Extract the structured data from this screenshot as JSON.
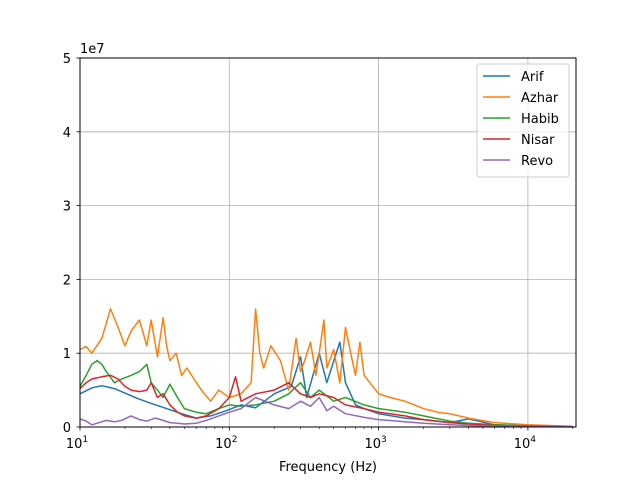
{
  "chart_data": {
    "type": "line",
    "title": "",
    "xlabel": "Frequency (Hz)",
    "ylabel": "",
    "x_scale": "log",
    "xlim": [
      10,
      21000
    ],
    "ylim": [
      0,
      50000000
    ],
    "y_offset_label": "1e7",
    "x_ticks": [
      {
        "value": 10,
        "base": "10",
        "exp": "1"
      },
      {
        "value": 100,
        "base": "10",
        "exp": "2"
      },
      {
        "value": 1000,
        "base": "10",
        "exp": "3"
      },
      {
        "value": 10000,
        "base": "10",
        "exp": "4"
      }
    ],
    "y_ticks": [
      {
        "value": 0,
        "label": "0"
      },
      {
        "value": 10000000,
        "label": "1"
      },
      {
        "value": 20000000,
        "label": "2"
      },
      {
        "value": 30000000,
        "label": "3"
      },
      {
        "value": 40000000,
        "label": "4"
      },
      {
        "value": 50000000,
        "label": "5"
      }
    ],
    "grid": true,
    "legend_position": "top-right",
    "series": [
      {
        "name": "Arif",
        "color": "#1f77b4",
        "x": [
          10,
          12,
          14,
          17,
          20,
          24,
          30,
          38,
          48,
          60,
          75,
          95,
          120,
          150,
          200,
          260,
          300,
          330,
          400,
          450,
          550,
          600,
          700,
          800,
          1000,
          1500,
          2000,
          3000,
          4000,
          6000,
          10000,
          20000
        ],
        "y": [
          4500000,
          5300000,
          5600000,
          5200000,
          4600000,
          3900000,
          3200000,
          2500000,
          1800000,
          1200000,
          1500000,
          2200000,
          3000000,
          2600000,
          4500000,
          5500000,
          9500000,
          4000000,
          10000000,
          6000000,
          11500000,
          6000000,
          3000000,
          2500000,
          1800000,
          1200000,
          1000000,
          600000,
          1100000,
          300000,
          150000,
          50000
        ]
      },
      {
        "name": "Azhar",
        "color": "#ff7f0e",
        "x": [
          10,
          11,
          12,
          14,
          16,
          18,
          20,
          22,
          25,
          28,
          30,
          33,
          36,
          38,
          40,
          44,
          48,
          52,
          58,
          65,
          75,
          85,
          100,
          120,
          140,
          150,
          160,
          170,
          190,
          220,
          250,
          280,
          300,
          320,
          350,
          380,
          400,
          430,
          450,
          500,
          550,
          600,
          650,
          700,
          750,
          800,
          1000,
          1200,
          1500,
          2000,
          2500,
          3000,
          4000,
          6000,
          10000,
          20000
        ],
        "y": [
          10500000,
          10900000,
          10000000,
          12000000,
          16000000,
          13500000,
          11000000,
          13000000,
          14500000,
          11000000,
          14500000,
          9500000,
          14800000,
          11000000,
          9000000,
          10000000,
          7000000,
          8000000,
          6500000,
          5000000,
          3500000,
          5000000,
          4000000,
          4500000,
          6000000,
          16000000,
          10000000,
          8000000,
          11000000,
          9000000,
          5000000,
          12000000,
          7500000,
          9000000,
          11500000,
          7000000,
          10000000,
          14500000,
          8000000,
          10500000,
          6000000,
          13500000,
          10000000,
          7000000,
          11500000,
          7000000,
          4500000,
          4000000,
          3500000,
          2500000,
          2000000,
          1800000,
          1200000,
          600000,
          300000,
          80000
        ]
      },
      {
        "name": "Habib",
        "color": "#2ca02c",
        "x": [
          10,
          11,
          12,
          13,
          14,
          15,
          17,
          19,
          22,
          25,
          28,
          30,
          33,
          36,
          40,
          45,
          50,
          60,
          70,
          85,
          100,
          120,
          150,
          200,
          250,
          300,
          350,
          400,
          500,
          600,
          800,
          1000,
          1500,
          2000,
          3000,
          4000,
          6000,
          10000,
          20000
        ],
        "y": [
          5500000,
          7000000,
          8500000,
          9000000,
          8500000,
          7500000,
          6000000,
          6500000,
          7000000,
          7500000,
          8500000,
          6000000,
          5000000,
          4000000,
          5800000,
          4000000,
          2500000,
          2000000,
          1800000,
          2500000,
          3000000,
          2800000,
          3000000,
          3500000,
          4500000,
          6000000,
          4000000,
          5000000,
          3500000,
          4000000,
          3000000,
          2500000,
          2000000,
          1500000,
          800000,
          500000,
          300000,
          150000,
          50000
        ]
      },
      {
        "name": "Nisar",
        "color": "#d62728",
        "x": [
          10,
          11,
          12,
          14,
          16,
          18,
          20,
          22,
          25,
          28,
          30,
          33,
          36,
          40,
          45,
          50,
          60,
          70,
          85,
          100,
          110,
          120,
          150,
          200,
          250,
          300,
          350,
          400,
          500,
          600,
          800,
          1000,
          1500,
          2000,
          3000,
          4000,
          6000,
          10000,
          20000
        ],
        "y": [
          5200000,
          6000000,
          6500000,
          6800000,
          7000000,
          6500000,
          5500000,
          5000000,
          4800000,
          5000000,
          6000000,
          4000000,
          4500000,
          3000000,
          2000000,
          1500000,
          1200000,
          1500000,
          2500000,
          4000000,
          6800000,
          3500000,
          4500000,
          5000000,
          6000000,
          4500000,
          4000000,
          4500000,
          4000000,
          3000000,
          2500000,
          2000000,
          1500000,
          1000000,
          600000,
          400000,
          200000,
          100000,
          30000
        ]
      },
      {
        "name": "Revo",
        "color": "#9467bd",
        "x": [
          10,
          11,
          12,
          13,
          15,
          17,
          19,
          22,
          25,
          28,
          32,
          36,
          40,
          45,
          50,
          60,
          70,
          85,
          100,
          120,
          150,
          200,
          250,
          300,
          350,
          400,
          450,
          500,
          600,
          800,
          1000,
          1500,
          2000,
          3000,
          4000,
          6000,
          10000,
          20000
        ],
        "y": [
          1100000,
          800000,
          300000,
          500000,
          900000,
          700000,
          900000,
          1500000,
          1000000,
          800000,
          1200000,
          900000,
          600000,
          500000,
          400000,
          500000,
          900000,
          1500000,
          2000000,
          2500000,
          4000000,
          3000000,
          2500000,
          3500000,
          2800000,
          4000000,
          2200000,
          2800000,
          1800000,
          1300000,
          1000000,
          700000,
          500000,
          300000,
          200000,
          120000,
          60000,
          20000
        ]
      }
    ]
  }
}
